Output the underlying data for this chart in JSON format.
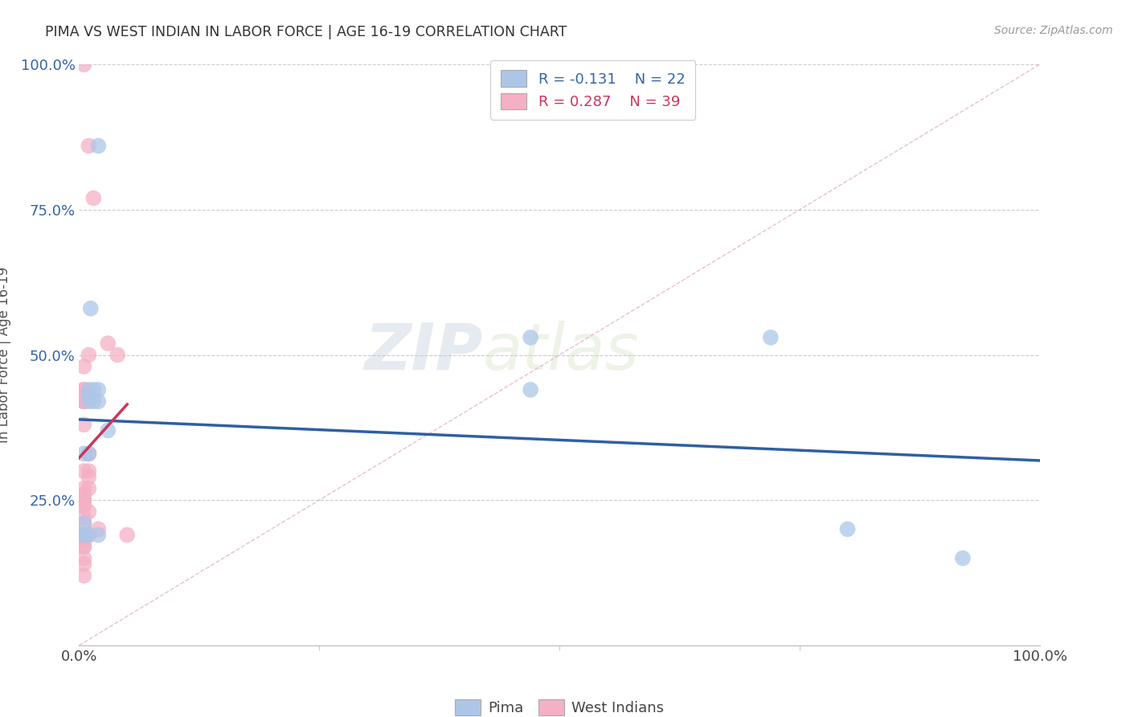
{
  "title": "PIMA VS WEST INDIAN IN LABOR FORCE | AGE 16-19 CORRELATION CHART",
  "source": "Source: ZipAtlas.com",
  "ylabel": "In Labor Force | Age 16-19",
  "legend1_r": "R = -0.131",
  "legend1_n": "N = 22",
  "legend2_r": "R = 0.287",
  "legend2_n": "N = 39",
  "legend_label1": "Pima",
  "legend_label2": "West Indians",
  "color_pima": "#adc6e8",
  "color_west": "#f4b0c4",
  "color_line_pima": "#2f5fa5",
  "color_line_west": "#c8365a",
  "color_diag": "#dba8b8",
  "watermark_zip": "ZIP",
  "watermark_atlas": "atlas",
  "pima_x": [
    2.0,
    1.2,
    1.0,
    1.0,
    1.5,
    1.0,
    2.0,
    1.5,
    2.0,
    1.0,
    0.5,
    0.5,
    1.0,
    3.0,
    2.0,
    0.5,
    0.5,
    47.0,
    47.0,
    72.0,
    80.0,
    92.0
  ],
  "pima_y": [
    86.0,
    58.0,
    44.0,
    43.0,
    44.0,
    42.0,
    42.0,
    42.0,
    44.0,
    33.0,
    33.0,
    21.0,
    19.0,
    37.0,
    19.0,
    19.0,
    19.0,
    53.0,
    44.0,
    53.0,
    20.0,
    15.0
  ],
  "west_x": [
    0.5,
    1.0,
    1.5,
    1.0,
    0.5,
    0.5,
    0.5,
    0.5,
    0.5,
    0.5,
    0.5,
    0.5,
    1.0,
    1.0,
    1.0,
    0.5,
    1.0,
    1.0,
    0.5,
    0.5,
    0.5,
    0.5,
    0.5,
    0.5,
    1.0,
    0.5,
    0.5,
    3.0,
    4.0,
    0.5,
    1.0,
    0.5,
    0.5,
    2.0,
    5.0,
    0.5,
    0.5,
    0.5,
    0.5
  ],
  "west_y": [
    100.0,
    86.0,
    77.0,
    50.0,
    48.0,
    44.0,
    44.0,
    43.0,
    42.0,
    42.0,
    42.0,
    38.0,
    33.0,
    33.0,
    30.0,
    30.0,
    29.0,
    27.0,
    27.0,
    26.0,
    25.0,
    25.0,
    24.0,
    24.0,
    23.0,
    22.0,
    21.0,
    52.0,
    50.0,
    19.0,
    19.0,
    18.0,
    17.0,
    20.0,
    19.0,
    17.0,
    15.0,
    14.0,
    12.0
  ],
  "xlim": [
    0,
    100
  ],
  "ylim": [
    0,
    100
  ],
  "yticks": [
    0,
    25,
    50,
    75,
    100
  ],
  "ytick_labels": [
    "",
    "25.0%",
    "50.0%",
    "75.0%",
    "100.0%"
  ],
  "xticks": [
    0,
    100
  ],
  "xtick_labels": [
    "0.0%",
    "100.0%"
  ]
}
